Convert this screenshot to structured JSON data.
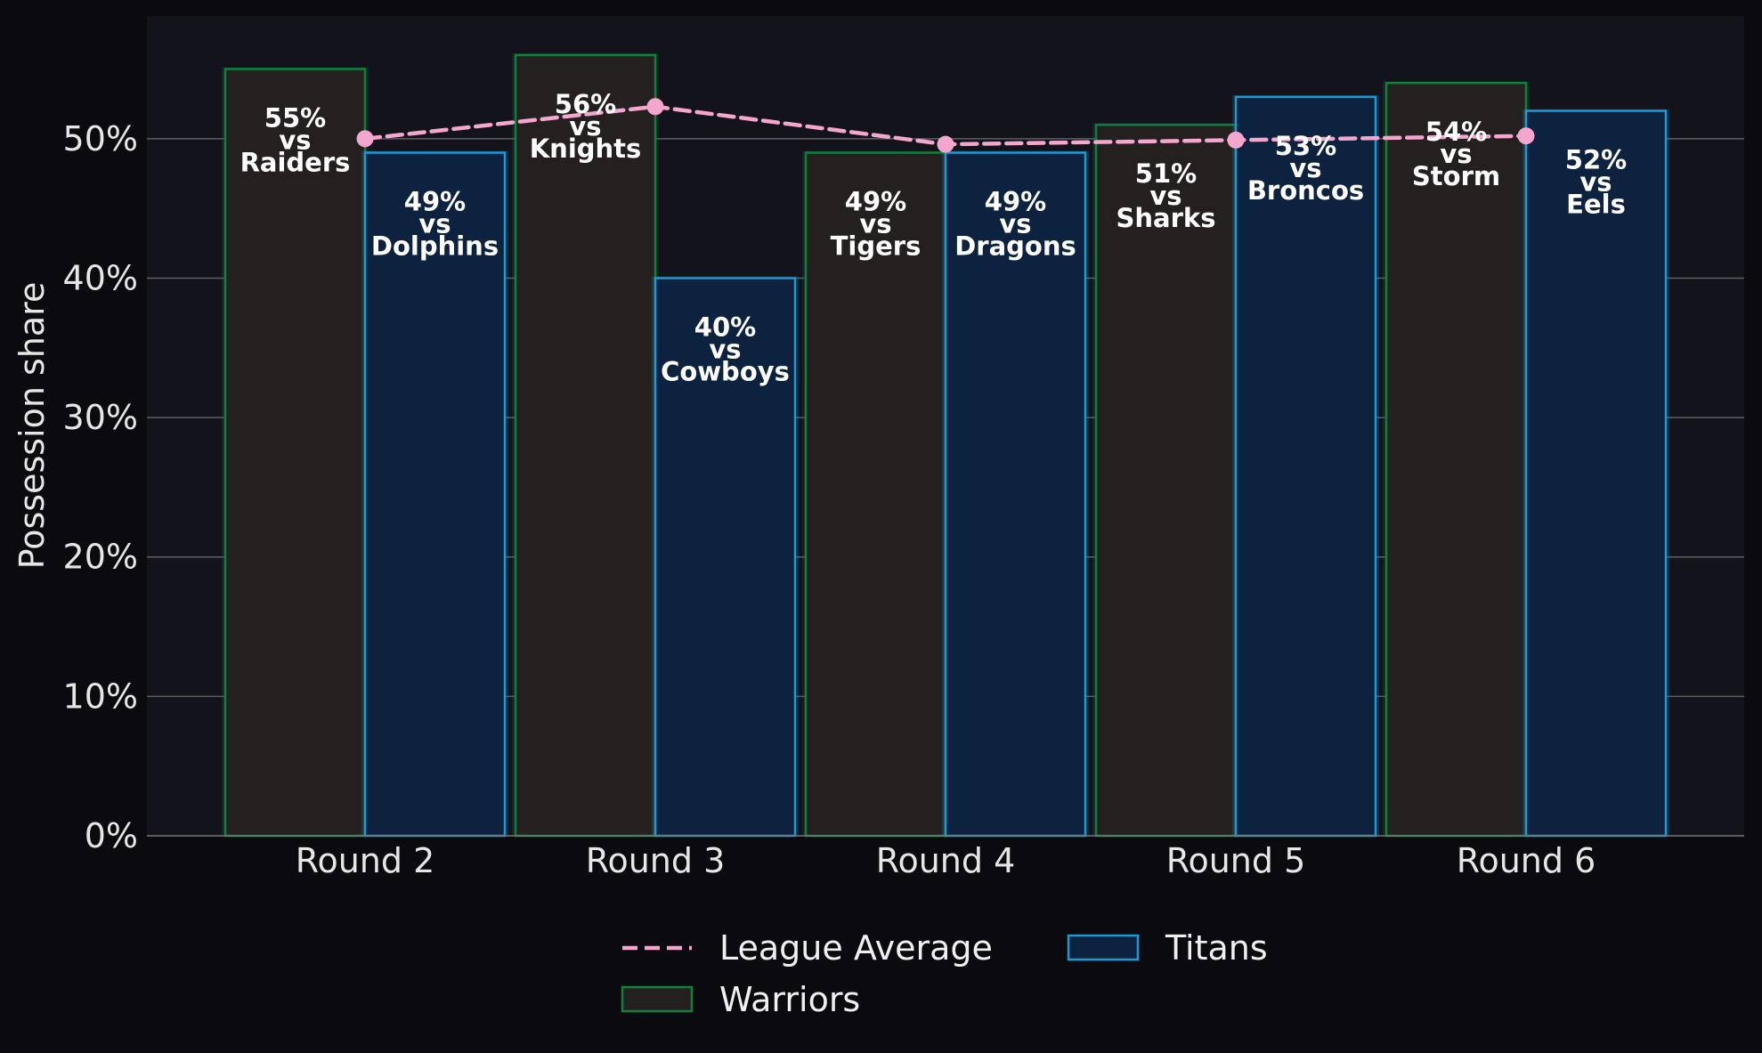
{
  "chart_data": {
    "type": "bar",
    "categories": [
      "Round 2",
      "Round 3",
      "Round 4",
      "Round 5",
      "Round 6"
    ],
    "ylabel": "Possession share",
    "xlabel": "",
    "ylim": [
      0,
      58.8
    ],
    "yticks": [
      0,
      10,
      20,
      30,
      40,
      50
    ],
    "ytick_labels": [
      "0%",
      "10%",
      "20%",
      "30%",
      "40%",
      "50%"
    ],
    "grid": true,
    "legend_position": "bottom-center",
    "series": [
      {
        "name": "Warriors",
        "kind": "bar",
        "values": [
          55,
          56,
          49,
          51,
          54
        ],
        "labels": [
          "55%\nvs\nRaiders",
          "56%\nvs\nKnights",
          "49%\nvs\nTigers",
          "51%\nvs\nSharks",
          "54%\nvs\nStorm"
        ],
        "fill": "#242020",
        "edge": "#11803f"
      },
      {
        "name": "Titans",
        "kind": "bar",
        "values": [
          49,
          40,
          49,
          53,
          52
        ],
        "labels": [
          "49%\nvs\nDolphins",
          "40%\nvs\nCowboys",
          "49%\nvs\nDragons",
          "53%\nvs\nBroncos",
          "52%\nvs\nEels"
        ],
        "fill": "#0d223f",
        "edge": "#1b9ad6"
      },
      {
        "name": "League Average",
        "kind": "line",
        "values": [
          50.0,
          52.3,
          49.6,
          49.9,
          50.2
        ],
        "color": "#f5a6cf",
        "dashed": true
      }
    ],
    "legend_order": [
      "League Average",
      "Titans",
      "Warriors"
    ]
  },
  "colors": {
    "figure_background": "#0b0b0f",
    "plot_background": "#12131b",
    "grid": "#5e5e5e",
    "text": "#e6e6e6"
  }
}
